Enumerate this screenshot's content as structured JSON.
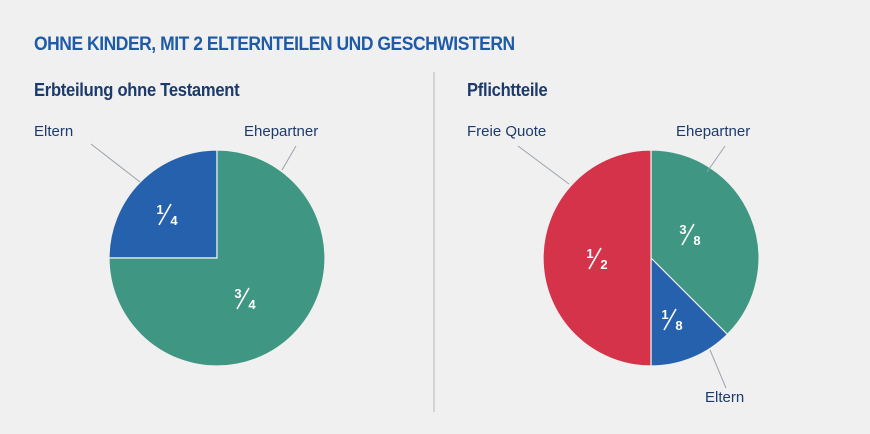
{
  "title": "OHNE KINDER, MIT 2 ELTERNTEILEN UND GESCHWISTERN",
  "chart_data": [
    {
      "type": "pie",
      "title": "Erbteilung ohne Testament",
      "slices": [
        {
          "label": "Ehepartner",
          "value": 0.75,
          "display": {
            "num": "3",
            "den": "4"
          },
          "color": "#3e9683"
        },
        {
          "label": "Eltern",
          "value": 0.25,
          "display": {
            "num": "1",
            "den": "4"
          },
          "color": "#2561ac"
        }
      ]
    },
    {
      "type": "pie",
      "title": "Pflichtteile",
      "slices": [
        {
          "label": "Ehepartner",
          "value": 0.375,
          "display": {
            "num": "3",
            "den": "8"
          },
          "color": "#3e9683"
        },
        {
          "label": "Eltern",
          "value": 0.125,
          "display": {
            "num": "1",
            "den": "8"
          },
          "color": "#2561ac"
        },
        {
          "label": "Freie Quote",
          "value": 0.5,
          "display": {
            "num": "1",
            "den": "2"
          },
          "color": "#d5334a"
        }
      ]
    }
  ]
}
